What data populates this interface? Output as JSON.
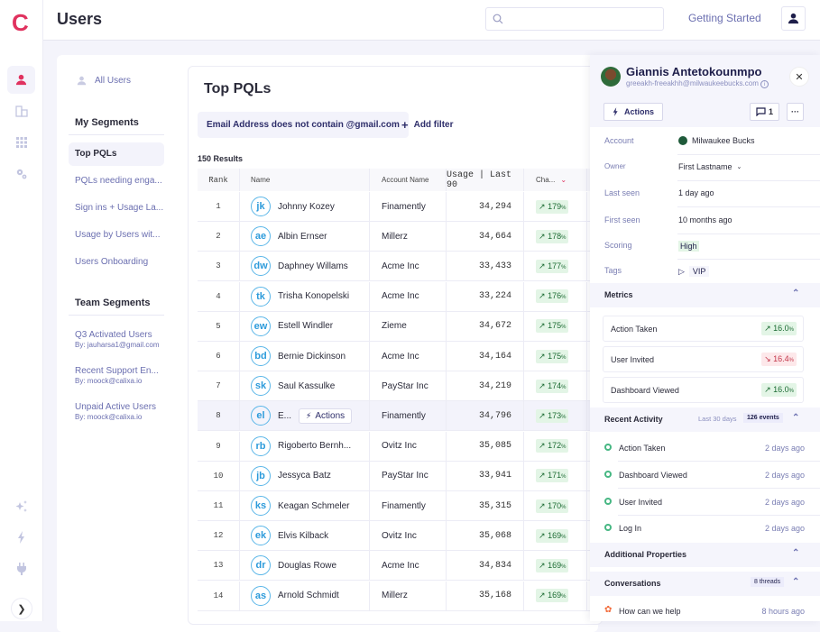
{
  "app": {
    "logo": "C",
    "page_title": "Users"
  },
  "header": {
    "search_placeholder": "",
    "getting_started": "Getting Started"
  },
  "rail": {
    "items": [
      "user-icon",
      "building-icon",
      "grid-icon",
      "gears-icon",
      "sparkles-icon",
      "bolt-icon",
      "plug-icon"
    ],
    "active": "user-icon"
  },
  "segments": {
    "all_users": "All Users",
    "my_segments_title": "My Segments",
    "my_segments": [
      "Top PQLs",
      "PQLs needing enga...",
      "Sign ins + Usage La...",
      "Usage by Users wit...",
      "Users Onboarding"
    ],
    "active": "Top PQLs",
    "team_segments_title": "Team Segments",
    "team_segments": [
      {
        "title": "Q3 Activated Users",
        "by": "By: jauharsa1@gmail.com"
      },
      {
        "title": "Recent Support En...",
        "by": "By: moock@calixa.io"
      },
      {
        "title": "Unpaid Active Users",
        "by": "By: moock@calixa.io"
      }
    ]
  },
  "table": {
    "title": "Top PQLs",
    "filter": "Email Address does not contain @gmail.com",
    "add_filter": "Add filter",
    "results": "150 Results",
    "columns": [
      "Rank",
      "Name",
      "Account Name",
      "Usage | Last 90",
      "Cha..."
    ],
    "row_actions_label": "Actions",
    "rows": [
      {
        "rank": "1",
        "initials": "jk",
        "name": "Johnny Kozey",
        "account": "Finamently",
        "usage": "34,294",
        "change": "179"
      },
      {
        "rank": "2",
        "initials": "ae",
        "name": "Albin Ernser",
        "account": "Millerz",
        "usage": "34,664",
        "change": "178"
      },
      {
        "rank": "3",
        "initials": "dw",
        "name": "Daphney Willams",
        "account": "Acme Inc",
        "usage": "33,433",
        "change": "177"
      },
      {
        "rank": "4",
        "initials": "tk",
        "name": "Trisha Konopelski",
        "account": "Acme Inc",
        "usage": "33,224",
        "change": "176"
      },
      {
        "rank": "5",
        "initials": "ew",
        "name": "Estell Windler",
        "account": "Zieme",
        "usage": "34,672",
        "change": "175"
      },
      {
        "rank": "6",
        "initials": "bd",
        "name": "Bernie Dickinson",
        "account": "Acme Inc",
        "usage": "34,164",
        "change": "175"
      },
      {
        "rank": "7",
        "initials": "sk",
        "name": "Saul Kassulke",
        "account": "PayStar Inc",
        "usage": "34,219",
        "change": "174"
      },
      {
        "rank": "8",
        "initials": "el",
        "name": "E...",
        "account": "Finamently",
        "usage": "34,796",
        "change": "173",
        "hovered": true
      },
      {
        "rank": "9",
        "initials": "rb",
        "name": "Rigoberto Bernh...",
        "account": "Ovitz Inc",
        "usage": "35,085",
        "change": "172"
      },
      {
        "rank": "10",
        "initials": "jb",
        "name": "Jessyca Batz",
        "account": "PayStar Inc",
        "usage": "33,941",
        "change": "171"
      },
      {
        "rank": "11",
        "initials": "ks",
        "name": "Keagan Schmeler",
        "account": "Finamently",
        "usage": "35,315",
        "change": "170"
      },
      {
        "rank": "12",
        "initials": "ek",
        "name": "Elvis Kilback",
        "account": "Ovitz Inc",
        "usage": "35,068",
        "change": "169"
      },
      {
        "rank": "13",
        "initials": "dr",
        "name": "Douglas Rowe",
        "account": "Acme Inc",
        "usage": "34,834",
        "change": "169"
      },
      {
        "rank": "14",
        "initials": "as",
        "name": "Arnold Schmidt",
        "account": "Millerz",
        "usage": "35,168",
        "change": "169"
      }
    ]
  },
  "panel": {
    "name": "Giannis Antetokounmpo",
    "email": "greeakh-freeakhh@milwaukeebucks.com",
    "actions_label": "Actions",
    "comment_count": "1",
    "more_label": "···",
    "properties": [
      {
        "key": "Account",
        "value": "Milwaukee Bucks"
      },
      {
        "key": "Owner",
        "value": "First Lastname"
      },
      {
        "key": "Last seen",
        "value": "1 day ago"
      },
      {
        "key": "First seen",
        "value": "10 months ago"
      },
      {
        "key": "Scoring",
        "value": "High"
      },
      {
        "key": "Tags",
        "value": "VIP"
      }
    ],
    "metrics_title": "Metrics",
    "metrics": [
      {
        "name": "Action Taken",
        "value": "16.0",
        "direction": "up"
      },
      {
        "name": "User Invited",
        "value": "16.4",
        "direction": "down"
      },
      {
        "name": "Dashboard Viewed",
        "value": "16.0",
        "direction": "up"
      }
    ],
    "activity_title": "Recent Activity",
    "activity_range": "Last 30 days",
    "activity_count": "126 events",
    "activities": [
      {
        "name": "Action Taken",
        "time": "2 days ago"
      },
      {
        "name": "Dashboard Viewed",
        "time": "2 days ago"
      },
      {
        "name": "User Invited",
        "time": "2 days ago"
      },
      {
        "name": "Log In",
        "time": "2 days ago"
      }
    ],
    "additional_title": "Additional Properties",
    "conversations_title": "Conversations",
    "threads": "8 threads",
    "conversation": {
      "name": "How can we help",
      "time": "8 hours ago"
    }
  },
  "colors": {
    "brand": "#e0325f",
    "link": "#6b6fb0",
    "up": "#1c6b33",
    "down": "#c3374b"
  }
}
